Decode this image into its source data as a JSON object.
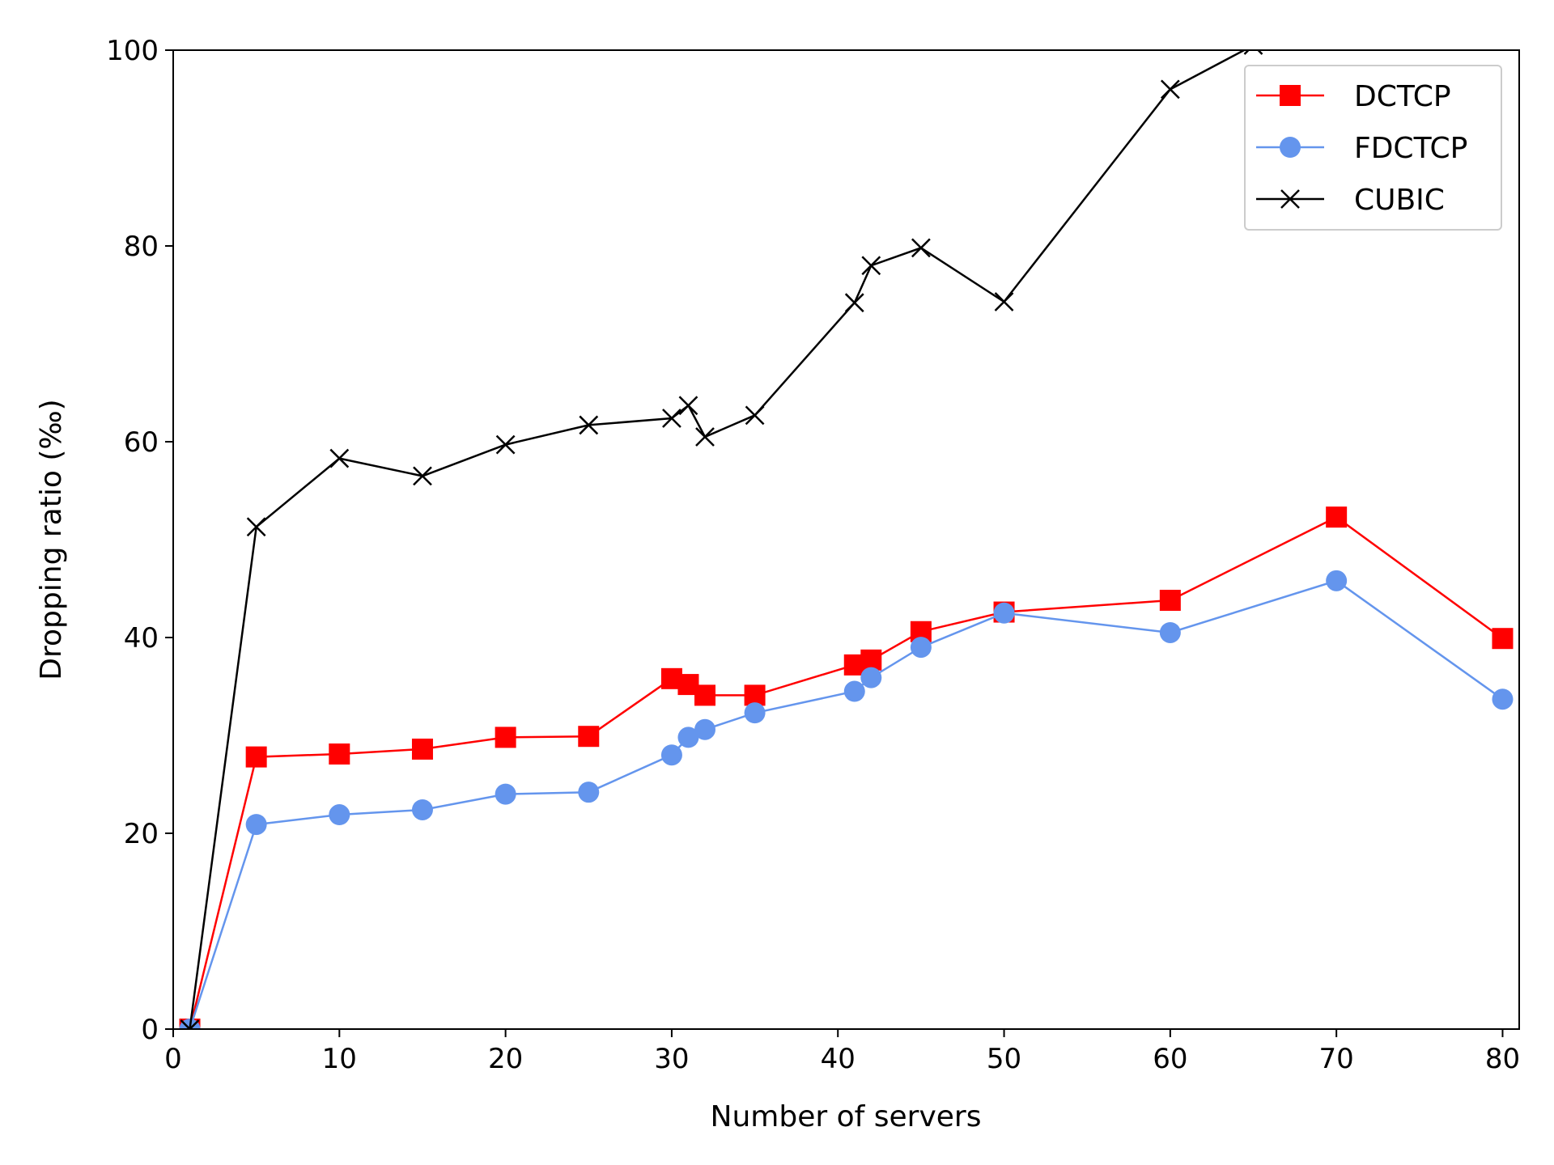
{
  "chart_data": {
    "type": "line",
    "title": "",
    "xlabel": "Number of servers",
    "ylabel": "Dropping ratio (‰)",
    "xlim": [
      0,
      81
    ],
    "ylim": [
      0,
      100
    ],
    "xticks": [
      0,
      10,
      20,
      30,
      40,
      50,
      60,
      70,
      80
    ],
    "yticks": [
      0,
      20,
      40,
      60,
      80,
      100
    ],
    "grid": false,
    "legend_position": "top-right",
    "series": [
      {
        "name": "DCTCP",
        "color": "#ff0000",
        "marker": "square",
        "x": [
          1,
          5,
          10,
          15,
          20,
          25,
          30,
          31,
          32,
          35,
          41,
          42,
          45,
          50,
          60,
          70,
          80
        ],
        "y": [
          0,
          27.8,
          28.1,
          28.6,
          29.8,
          29.9,
          35.8,
          35.2,
          34.1,
          34.1,
          37.2,
          37.7,
          40.6,
          42.6,
          43.8,
          52.3,
          39.9
        ]
      },
      {
        "name": "FDCTCP",
        "color": "#6495ed",
        "marker": "circle",
        "x": [
          1,
          5,
          10,
          15,
          20,
          25,
          30,
          31,
          32,
          35,
          41,
          42,
          45,
          50,
          60,
          70,
          80
        ],
        "y": [
          0,
          20.9,
          21.9,
          22.4,
          24.0,
          24.2,
          28.0,
          29.8,
          30.6,
          32.3,
          34.5,
          35.9,
          39.0,
          42.5,
          40.5,
          45.8,
          33.7
        ]
      },
      {
        "name": "CUBIC",
        "color": "#000000",
        "marker": "x",
        "x": [
          1,
          5,
          10,
          15,
          20,
          25,
          30,
          31,
          32,
          35,
          41,
          42,
          45,
          50,
          60,
          65
        ],
        "y": [
          0,
          51.3,
          58.3,
          56.5,
          59.7,
          61.7,
          62.4,
          63.7,
          60.5,
          62.7,
          74.2,
          78.0,
          79.8,
          74.3,
          96.0,
          100.5
        ]
      }
    ]
  }
}
